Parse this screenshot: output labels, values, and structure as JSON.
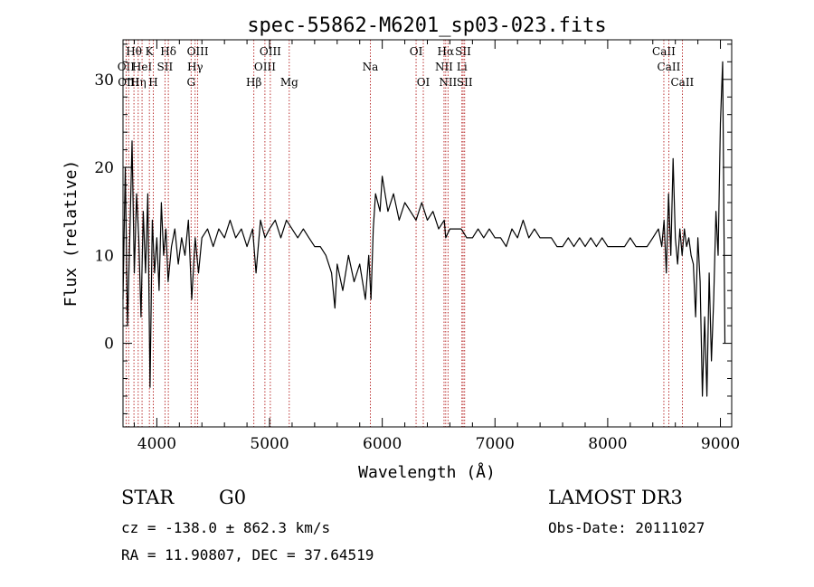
{
  "chart_data": {
    "type": "line",
    "title": "spec-55862-M6201_sp03-023.fits",
    "xlabel": "Wavelength (Å)",
    "ylabel": "Flux (relative)",
    "xlim": [
      3700,
      9100
    ],
    "ylim": [
      -9.5,
      34.5
    ],
    "xticks": [
      4000,
      5000,
      6000,
      7000,
      8000,
      9000
    ],
    "yticks": [
      0,
      10,
      20,
      30
    ],
    "series": [
      {
        "name": "spectrum",
        "x": [
          3700,
          3720,
          3740,
          3760,
          3780,
          3800,
          3820,
          3840,
          3860,
          3880,
          3900,
          3920,
          3940,
          3960,
          3980,
          4000,
          4020,
          4040,
          4060,
          4080,
          4100,
          4130,
          4160,
          4190,
          4220,
          4250,
          4280,
          4310,
          4340,
          4370,
          4400,
          4450,
          4500,
          4550,
          4600,
          4650,
          4700,
          4750,
          4800,
          4850,
          4880,
          4920,
          4960,
          5000,
          5050,
          5100,
          5150,
          5200,
          5250,
          5300,
          5350,
          5400,
          5450,
          5500,
          5550,
          5580,
          5600,
          5650,
          5700,
          5750,
          5800,
          5850,
          5880,
          5900,
          5920,
          5940,
          5960,
          5980,
          6000,
          6050,
          6100,
          6150,
          6200,
          6250,
          6300,
          6350,
          6400,
          6450,
          6500,
          6550,
          6563,
          6600,
          6650,
          6700,
          6750,
          6800,
          6850,
          6900,
          6950,
          7000,
          7050,
          7100,
          7150,
          7200,
          7250,
          7300,
          7350,
          7400,
          7450,
          7500,
          7550,
          7600,
          7650,
          7700,
          7750,
          7800,
          7850,
          7900,
          7950,
          8000,
          8050,
          8100,
          8150,
          8200,
          8250,
          8300,
          8350,
          8400,
          8450,
          8480,
          8500,
          8520,
          8540,
          8560,
          8580,
          8600,
          8620,
          8640,
          8660,
          8680,
          8700,
          8720,
          8740,
          8760,
          8780,
          8800,
          8820,
          8840,
          8860,
          8880,
          8900,
          8920,
          8940,
          8960,
          8980,
          9000,
          9020,
          9040
        ],
        "y": [
          5,
          20,
          2,
          12,
          23,
          8,
          17,
          12,
          3,
          15,
          8,
          17,
          -5,
          14,
          8,
          12,
          6,
          16,
          10,
          13,
          7,
          11,
          13,
          9,
          12,
          10,
          14,
          5,
          12,
          8,
          12,
          13,
          11,
          13,
          12,
          14,
          12,
          13,
          11,
          13,
          8,
          14,
          12,
          13,
          14,
          12,
          14,
          13,
          12,
          13,
          12,
          11,
          11,
          10,
          8,
          4,
          9,
          6,
          10,
          7,
          9,
          5,
          10,
          5,
          13,
          17,
          16,
          15,
          19,
          15,
          17,
          14,
          16,
          15,
          14,
          16,
          14,
          15,
          13,
          14,
          12,
          13,
          13,
          13,
          12,
          12,
          13,
          12,
          13,
          12,
          12,
          11,
          13,
          12,
          14,
          12,
          13,
          12,
          12,
          12,
          11,
          11,
          12,
          11,
          12,
          11,
          12,
          11,
          12,
          11,
          11,
          11,
          11,
          12,
          11,
          11,
          11,
          12,
          13,
          11,
          14,
          8,
          17,
          10,
          21,
          12,
          9,
          13,
          10,
          13,
          11,
          12,
          10,
          9,
          3,
          12,
          7,
          -6,
          3,
          -6,
          8,
          -2,
          5,
          15,
          10,
          25,
          32,
          0
        ]
      }
    ],
    "line_markers": [
      {
        "w": 3727,
        "row": 2,
        "label": "OII"
      },
      {
        "w": 3750,
        "row": 3,
        "label": "OIII"
      },
      {
        "w": 3797,
        "row": 1,
        "label": "Hθ"
      },
      {
        "w": 3835,
        "row": 3,
        "label": "Hη"
      },
      {
        "w": 3869,
        "row": 2,
        "label": "HeI"
      },
      {
        "w": 3934,
        "row": 1,
        "label": "K"
      },
      {
        "w": 3969,
        "row": 3,
        "label": "H"
      },
      {
        "w": 4072,
        "row": 2,
        "label": "SII"
      },
      {
        "w": 4102,
        "row": 1,
        "label": "Hδ"
      },
      {
        "w": 4304,
        "row": 3,
        "label": "G"
      },
      {
        "w": 4340,
        "row": 2,
        "label": "Hγ"
      },
      {
        "w": 4363,
        "row": 1,
        "label": "OIII"
      },
      {
        "w": 4861,
        "row": 3,
        "label": "Hβ"
      },
      {
        "w": 4959,
        "row": 2,
        "label": "OIII"
      },
      {
        "w": 5007,
        "row": 1,
        "label": "OIII"
      },
      {
        "w": 5175,
        "row": 3,
        "label": "Mg"
      },
      {
        "w": 5894,
        "row": 2,
        "label": "Na"
      },
      {
        "w": 6300,
        "row": 1,
        "label": "OI"
      },
      {
        "w": 6364,
        "row": 3,
        "label": "OI"
      },
      {
        "w": 6548,
        "row": 2,
        "label": "NII"
      },
      {
        "w": 6563,
        "row": 1,
        "label": "Hα"
      },
      {
        "w": 6583,
        "row": 3,
        "label": "NII"
      },
      {
        "w": 6707,
        "row": 2,
        "label": "Li"
      },
      {
        "w": 6717,
        "row": 1,
        "label": "SII"
      },
      {
        "w": 6731,
        "row": 3,
        "label": "SII"
      },
      {
        "w": 8498,
        "row": 1,
        "label": "CaII"
      },
      {
        "w": 8542,
        "row": 2,
        "label": "CaII"
      },
      {
        "w": 8662,
        "row": 3,
        "label": "CaII"
      }
    ]
  },
  "info": {
    "class": "STAR",
    "subclass": "G0",
    "survey": "LAMOST DR3",
    "cz": "cz = -138.0 ± 862.3 km/s",
    "obs_date": "Obs-Date: 20111027",
    "coords": "RA =  11.90807, DEC =  37.64519"
  },
  "colors": {
    "marker": "#aa0000",
    "line": "#000000"
  }
}
